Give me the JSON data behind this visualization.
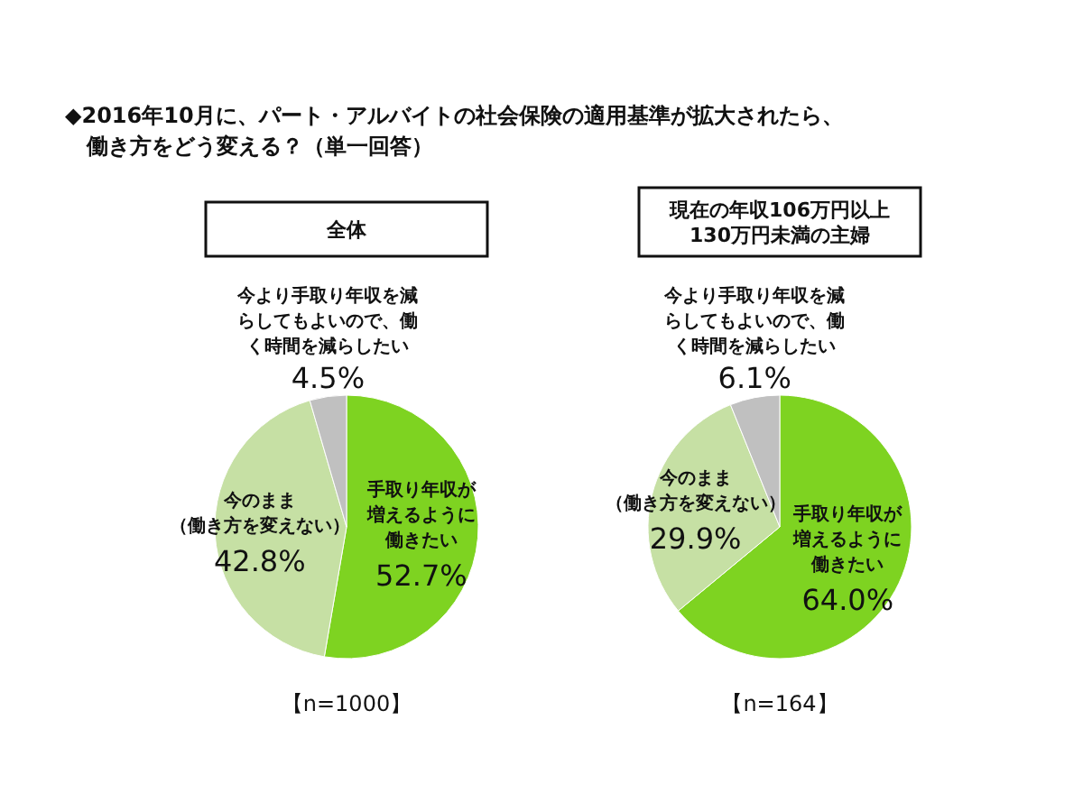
{
  "chart_data": [
    {
      "type": "pie",
      "title": "全体",
      "categories": [
        "手取り年収が増えるように働きたい",
        "今のまま（働き方を変えない）",
        "今より手取り年収を減らしてもよいので、働く時間を減らしたい"
      ],
      "values": [
        52.7,
        42.8,
        4.5
      ],
      "value_labels": [
        "52.7%",
        "42.8%",
        "4.5%"
      ],
      "colors": [
        "#7ed321",
        "#c6e0a4",
        "#c0c0c0"
      ],
      "annotations": [
        "◆2016年10月に、パート・アルバイトの社会保険の適用基準が拡大されたら、働き方をどう変える？（単一回答）",
        "【n=1000】"
      ]
    },
    {
      "type": "pie",
      "title": "現在の年収106万円以上130万円未満の主婦",
      "categories": [
        "手取り年収が増えるように働きたい",
        "今のまま（働き方を変えない）",
        "今より手取り年収を減らしてもよいので、働く時間を減らしたい"
      ],
      "values": [
        64.0,
        29.9,
        6.1
      ],
      "value_labels": [
        "64.0%",
        "29.9%",
        "6.1%"
      ],
      "colors": [
        "#7ed321",
        "#c6e0a4",
        "#c0c0c0"
      ],
      "annotations": [
        "【n=164】"
      ]
    }
  ]
}
